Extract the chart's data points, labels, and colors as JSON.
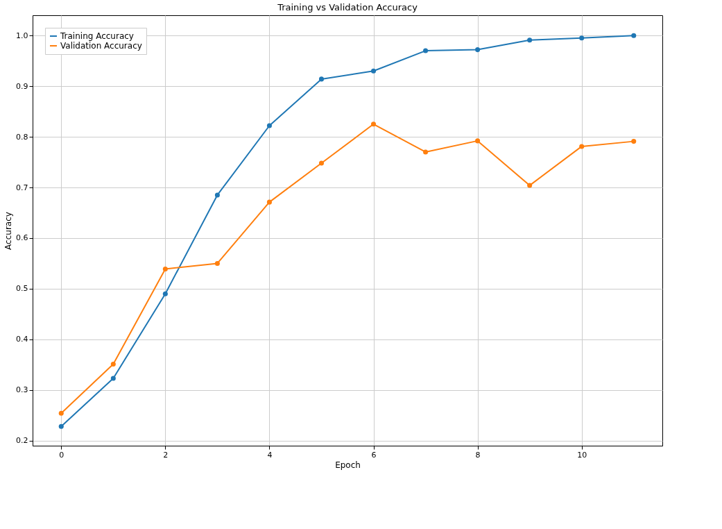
{
  "chart_data": {
    "type": "line",
    "title": "Training vs Validation Accuracy",
    "xlabel": "Epoch",
    "ylabel": "Accuracy",
    "x": [
      0,
      1,
      2,
      3,
      4,
      5,
      6,
      7,
      8,
      9,
      10,
      11
    ],
    "series": [
      {
        "name": "Training Accuracy",
        "color": "#1f77b4",
        "values": [
          0.228,
          0.323,
          0.49,
          0.685,
          0.822,
          0.914,
          0.93,
          0.97,
          0.972,
          0.991,
          0.995,
          1.0
        ]
      },
      {
        "name": "Validation Accuracy",
        "color": "#ff7f0e",
        "values": [
          0.254,
          0.351,
          0.539,
          0.55,
          0.671,
          0.748,
          0.825,
          0.77,
          0.792,
          0.704,
          0.781,
          0.791
        ]
      }
    ],
    "xlim": [
      -0.55,
      11.55
    ],
    "xticks": [
      0,
      2,
      4,
      6,
      8,
      10
    ],
    "ylim": [
      0.19,
      1.04
    ],
    "yticks": [
      0.2,
      0.3,
      0.4,
      0.5,
      0.6,
      0.7,
      0.8,
      0.9,
      {
        "value": 1,
        "label": "1.0"
      }
    ],
    "grid": true,
    "legend": "top left",
    "marker": "circle",
    "line_style": "solid"
  }
}
